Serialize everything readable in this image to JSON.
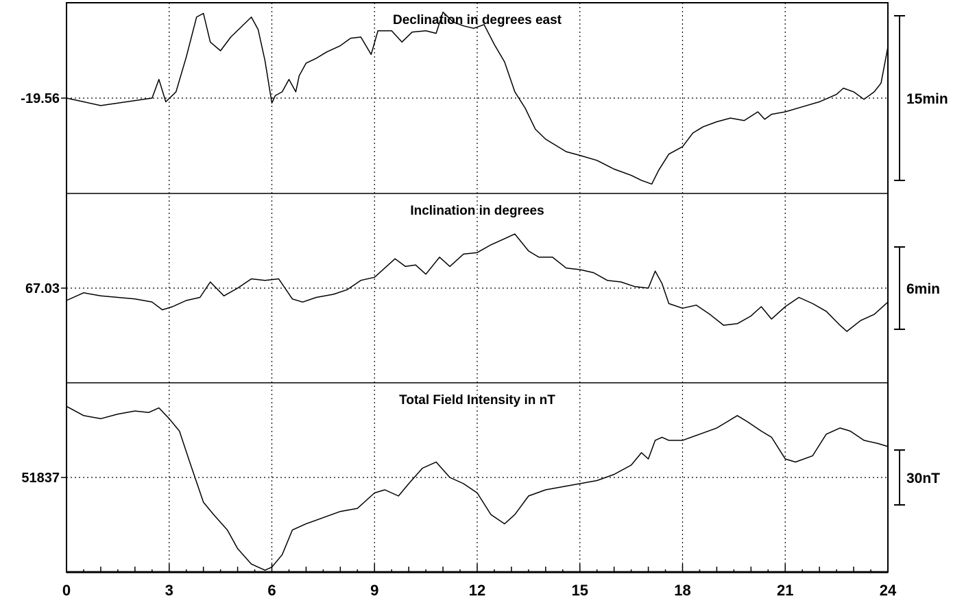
{
  "chart_data": {
    "type": "line",
    "x_range": [
      0,
      24
    ],
    "x_ticks": [
      "0",
      "3",
      "6",
      "9",
      "12",
      "15",
      "18",
      "21",
      "24"
    ],
    "grid": "dotted",
    "line_color": "#000000",
    "panels": [
      {
        "title": "Declination in degrees east",
        "baseline_label": "-19.56",
        "scale_label": "15min",
        "y_range": [
          -7.5,
          7.5
        ],
        "x": [
          0,
          0.5,
          1,
          1.5,
          2,
          2.5,
          2.7,
          2.9,
          3.2,
          3.5,
          3.8,
          4,
          4.2,
          4.5,
          4.8,
          5.1,
          5.4,
          5.6,
          5.8,
          6,
          6.1,
          6.3,
          6.5,
          6.7,
          6.8,
          7,
          7.3,
          7.6,
          8,
          8.3,
          8.6,
          8.9,
          9.1,
          9.5,
          9.8,
          10.1,
          10.5,
          10.8,
          11,
          11.3,
          11.6,
          11.9,
          12.2,
          12.5,
          12.8,
          13.1,
          13.4,
          13.7,
          14,
          14.3,
          14.6,
          15,
          15.5,
          16,
          16.5,
          16.8,
          17.1,
          17.3,
          17.6,
          18,
          18.3,
          18.6,
          19,
          19.4,
          19.8,
          20.2,
          20.4,
          20.6,
          21,
          21.5,
          22,
          22.5,
          22.7,
          23,
          23.3,
          23.6,
          23.8,
          24
        ],
        "y": [
          0,
          -0.3,
          -0.6,
          -0.4,
          -0.2,
          0,
          1.5,
          -0.3,
          0.5,
          3.3,
          6.5,
          6.8,
          4.5,
          3.8,
          4.9,
          5.7,
          6.5,
          5.5,
          3,
          -0.4,
          0.2,
          0.5,
          1.5,
          0.5,
          1.8,
          2.8,
          3.2,
          3.7,
          4.2,
          4.8,
          4.9,
          3.5,
          5.4,
          5.4,
          4.5,
          5.3,
          5.4,
          5.2,
          6.9,
          6.1,
          5.8,
          5.6,
          5.9,
          4.3,
          2.9,
          0.5,
          -0.8,
          -2.5,
          -3.3,
          -3.8,
          -4.3,
          -4.6,
          -5,
          -5.7,
          -6.2,
          -6.6,
          -6.9,
          -5.8,
          -4.5,
          -3.9,
          -2.8,
          -2.3,
          -1.9,
          -1.6,
          -1.8,
          -1.1,
          -1.7,
          -1.3,
          -1.1,
          -0.7,
          -0.3,
          0.3,
          0.8,
          0.5,
          -0.1,
          0.5,
          1.2,
          4.1
        ]
      },
      {
        "title": "Inclination in degrees",
        "baseline_label": "67.03",
        "scale_label": "6min",
        "y_range": [
          -6,
          6
        ],
        "x": [
          0,
          0.5,
          1,
          1.5,
          2,
          2.5,
          2.8,
          3.1,
          3.5,
          3.9,
          4.2,
          4.6,
          5,
          5.4,
          5.8,
          6.2,
          6.6,
          6.9,
          7.3,
          7.8,
          8.2,
          8.6,
          9,
          9.3,
          9.6,
          9.9,
          10.2,
          10.5,
          10.9,
          11.2,
          11.6,
          12,
          12.4,
          12.8,
          13.1,
          13.5,
          13.8,
          14.2,
          14.6,
          15,
          15.4,
          15.8,
          16.2,
          16.6,
          17,
          17.2,
          17.4,
          17.6,
          18,
          18.4,
          18.8,
          19.2,
          19.6,
          20,
          20.3,
          20.6,
          21,
          21.4,
          21.8,
          22.2,
          22.6,
          22.8,
          23.2,
          23.6,
          24
        ],
        "y": [
          -0.8,
          -0.3,
          -0.5,
          -0.6,
          -0.7,
          -0.9,
          -1.4,
          -1.2,
          -0.8,
          -0.6,
          0.4,
          -0.5,
          0,
          0.6,
          0.5,
          0.6,
          -0.7,
          -0.9,
          -0.6,
          -0.4,
          -0.1,
          0.5,
          0.7,
          1.3,
          1.9,
          1.4,
          1.5,
          0.9,
          2,
          1.4,
          2.2,
          2.3,
          2.8,
          3.2,
          3.5,
          2.4,
          2,
          2,
          1.3,
          1.2,
          1,
          0.5,
          0.4,
          0.1,
          0,
          1.1,
          0.3,
          -1,
          -1.3,
          -1.1,
          -1.7,
          -2.4,
          -2.3,
          -1.8,
          -1.2,
          -2,
          -1.2,
          -0.6,
          -1,
          -1.5,
          -2.4,
          -2.8,
          -2.1,
          -1.7,
          -0.9
        ]
      },
      {
        "title": "Total Field Intensity in nT",
        "baseline_label": "51837",
        "scale_label": "30nT",
        "y_range": [
          -30,
          30
        ],
        "x": [
          0,
          0.5,
          1,
          1.5,
          2,
          2.4,
          2.7,
          3,
          3.3,
          3.6,
          4,
          4.3,
          4.7,
          5,
          5.4,
          5.8,
          6,
          6.3,
          6.6,
          7,
          7.5,
          8,
          8.5,
          9,
          9.3,
          9.7,
          10,
          10.4,
          10.8,
          11.2,
          11.6,
          12,
          12.4,
          12.8,
          13.1,
          13.5,
          14,
          14.5,
          15,
          15.5,
          16,
          16.5,
          16.8,
          17,
          17.2,
          17.4,
          17.6,
          18,
          18.5,
          19,
          19.3,
          19.6,
          19.9,
          20.3,
          20.6,
          21,
          21.3,
          21.8,
          22.2,
          22.6,
          22.9,
          23.3,
          23.7,
          24
        ],
        "y": [
          23,
          20,
          19,
          20.5,
          21.5,
          21,
          22.5,
          19,
          15,
          5,
          -8,
          -12,
          -17,
          -23,
          -28,
          -30,
          -29,
          -25,
          -17,
          -15,
          -13,
          -11,
          -10,
          -5,
          -4,
          -6,
          -2,
          3,
          5,
          0,
          -2,
          -5,
          -12,
          -15,
          -12,
          -6,
          -4,
          -3,
          -2,
          -1,
          1,
          4,
          8,
          6,
          12,
          13,
          12,
          12,
          14,
          16,
          18,
          20,
          18,
          15,
          13,
          6,
          5,
          7,
          14,
          16,
          15,
          12,
          11,
          10
        ]
      }
    ]
  }
}
